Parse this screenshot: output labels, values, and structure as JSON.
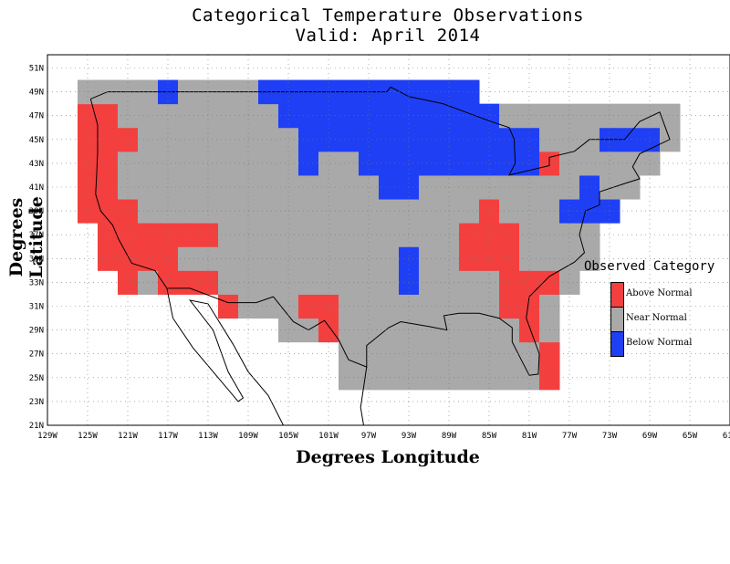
{
  "title": {
    "line1": "Categorical Temperature Observations",
    "line2": "Valid: April 2014"
  },
  "axes": {
    "xlabel": "Degrees Longitude",
    "ylabel": "Degrees Latitude",
    "lon_ticks": [
      "129W",
      "125W",
      "121W",
      "117W",
      "113W",
      "109W",
      "105W",
      "101W",
      "97W",
      "93W",
      "89W",
      "85W",
      "81W",
      "77W",
      "73W",
      "69W",
      "65W",
      "61W"
    ],
    "lat_ticks": [
      "21N",
      "23N",
      "25N",
      "27N",
      "29N",
      "31N",
      "33N",
      "35N",
      "37N",
      "39N",
      "41N",
      "43N",
      "45N",
      "47N",
      "49N",
      "51N"
    ],
    "lon_range": [
      -129,
      -61
    ],
    "lat_range": [
      21,
      52
    ],
    "grid": "dotted"
  },
  "legend": {
    "title": "Observed Category",
    "items": [
      {
        "label": "Above Normal",
        "color": "#f43f3f"
      },
      {
        "label": "Near Normal",
        "color": "#a9a9a9"
      },
      {
        "label": "Below Normal",
        "color": "#1f3ff5"
      }
    ]
  },
  "map_data": {
    "cell_size_deg": 2,
    "blue_cells": [
      [
        -117,
        49
      ],
      [
        -107,
        49
      ],
      [
        -105,
        49
      ],
      [
        -103,
        49
      ],
      [
        -101,
        49
      ],
      [
        -99,
        49
      ],
      [
        -97,
        49
      ],
      [
        -95,
        49
      ],
      [
        -93,
        49
      ],
      [
        -91,
        49
      ],
      [
        -89,
        49
      ],
      [
        -87,
        49
      ],
      [
        -105,
        47
      ],
      [
        -103,
        47
      ],
      [
        -101,
        47
      ],
      [
        -99,
        47
      ],
      [
        -97,
        47
      ],
      [
        -95,
        47
      ],
      [
        -93,
        47
      ],
      [
        -91,
        47
      ],
      [
        -89,
        47
      ],
      [
        -87,
        47
      ],
      [
        -85,
        47
      ],
      [
        -103,
        45
      ],
      [
        -101,
        45
      ],
      [
        -99,
        45
      ],
      [
        -97,
        45
      ],
      [
        -95,
        45
      ],
      [
        -93,
        45
      ],
      [
        -91,
        45
      ],
      [
        -89,
        45
      ],
      [
        -87,
        45
      ],
      [
        -85,
        45
      ],
      [
        -83,
        45
      ],
      [
        -81,
        45
      ],
      [
        -103,
        43
      ],
      [
        -97,
        43
      ],
      [
        -95,
        43
      ],
      [
        -93,
        43
      ],
      [
        -91,
        43
      ],
      [
        -89,
        43
      ],
      [
        -87,
        43
      ],
      [
        -85,
        43
      ],
      [
        -83,
        43
      ],
      [
        -81,
        43
      ],
      [
        -73,
        45
      ],
      [
        -71,
        45
      ],
      [
        -69,
        45
      ],
      [
        -95,
        41
      ],
      [
        -93,
        41
      ],
      [
        -75,
        41
      ],
      [
        -75,
        39
      ],
      [
        -73,
        39
      ],
      [
        -77,
        39
      ],
      [
        -93,
        35
      ],
      [
        -93,
        33
      ]
    ],
    "red_cells": [
      [
        -125,
        47
      ],
      [
        -123,
        47
      ],
      [
        -123,
        45
      ],
      [
        -121,
        45
      ],
      [
        -125,
        45
      ],
      [
        -125,
        43
      ],
      [
        -123,
        43
      ],
      [
        -125,
        41
      ],
      [
        -123,
        41
      ],
      [
        -125,
        39
      ],
      [
        -123,
        39
      ],
      [
        -121,
        39
      ],
      [
        -123,
        37
      ],
      [
        -121,
        37
      ],
      [
        -119,
        37
      ],
      [
        -117,
        37
      ],
      [
        -115,
        37
      ],
      [
        -113,
        37
      ],
      [
        -123,
        35
      ],
      [
        -121,
        35
      ],
      [
        -119,
        35
      ],
      [
        -117,
        35
      ],
      [
        -121,
        33
      ],
      [
        -115,
        33
      ],
      [
        -117,
        33
      ],
      [
        -113,
        33
      ],
      [
        -111,
        31
      ],
      [
        -103,
        31
      ],
      [
        -101,
        31
      ],
      [
        -101,
        29
      ],
      [
        -85,
        39
      ],
      [
        -87,
        37
      ],
      [
        -85,
        37
      ],
      [
        -83,
        37
      ],
      [
        -87,
        35
      ],
      [
        -85,
        35
      ],
      [
        -83,
        35
      ],
      [
        -83,
        33
      ],
      [
        -81,
        33
      ],
      [
        -79,
        33
      ],
      [
        -83,
        31
      ],
      [
        -81,
        31
      ],
      [
        -81,
        29
      ],
      [
        -79,
        27
      ],
      [
        -79,
        25
      ],
      [
        -79,
        43
      ]
    ]
  }
}
